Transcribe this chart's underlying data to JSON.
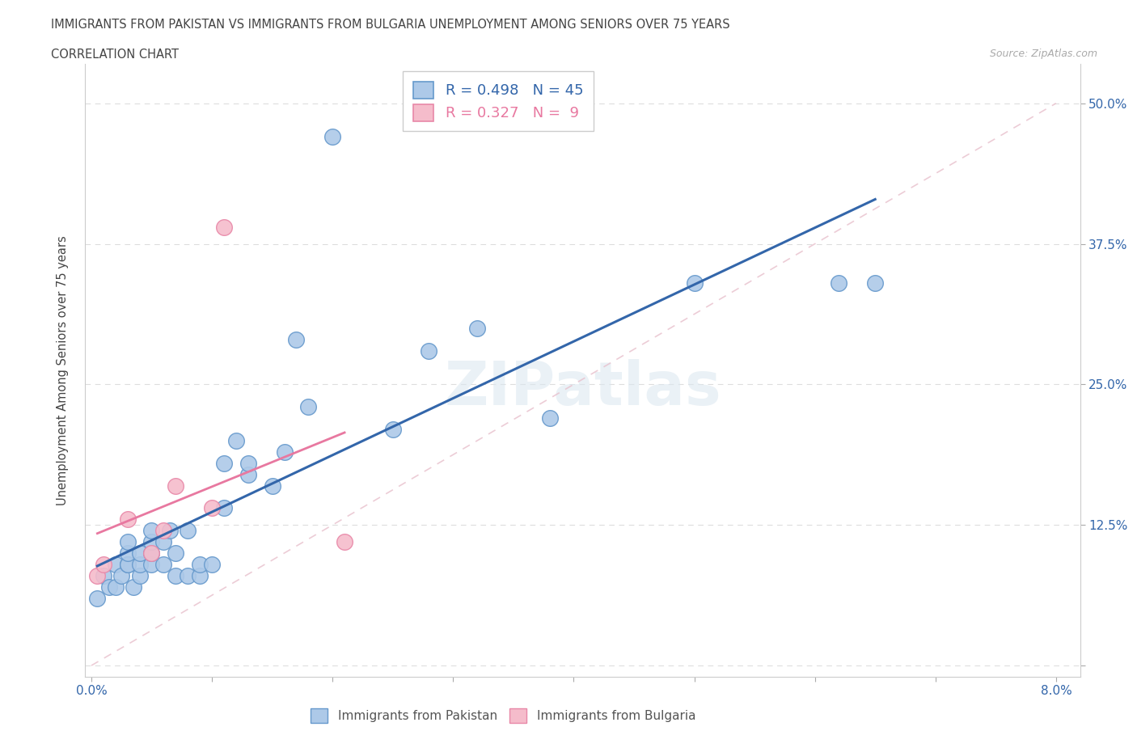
{
  "title_line1": "IMMIGRANTS FROM PAKISTAN VS IMMIGRANTS FROM BULGARIA UNEMPLOYMENT AMONG SENIORS OVER 75 YEARS",
  "title_line2": "CORRELATION CHART",
  "source": "Source: ZipAtlas.com",
  "ylabel": "Unemployment Among Seniors over 75 years",
  "xlim": [
    -0.0005,
    0.082
  ],
  "ylim": [
    -0.01,
    0.535
  ],
  "xtick_pos": [
    0.0,
    0.01,
    0.02,
    0.03,
    0.04,
    0.05,
    0.06,
    0.07,
    0.08
  ],
  "xtick_labels": [
    "0.0%",
    "",
    "",
    "",
    "",
    "",
    "",
    "",
    "8.0%"
  ],
  "ytick_pos": [
    0.0,
    0.125,
    0.25,
    0.375,
    0.5
  ],
  "ytick_labels": [
    "",
    "12.5%",
    "25.0%",
    "37.5%",
    "50.0%"
  ],
  "pakistan_R": 0.498,
  "pakistan_N": 45,
  "bulgaria_R": 0.327,
  "bulgaria_N": 9,
  "pakistan_color": "#adc9e8",
  "pakistan_edge_color": "#6699cc",
  "pakistan_line_color": "#3366aa",
  "bulgaria_color": "#f5bccb",
  "bulgaria_edge_color": "#e888a8",
  "bulgaria_line_color": "#e878a0",
  "ref_line_color": "#ddbbc8",
  "watermark": "ZIPatlas",
  "pakistan_x": [
    0.0005,
    0.001,
    0.0015,
    0.002,
    0.002,
    0.0025,
    0.003,
    0.003,
    0.003,
    0.003,
    0.0035,
    0.004,
    0.004,
    0.004,
    0.005,
    0.005,
    0.005,
    0.005,
    0.006,
    0.006,
    0.0065,
    0.007,
    0.007,
    0.008,
    0.008,
    0.009,
    0.009,
    0.01,
    0.011,
    0.011,
    0.012,
    0.013,
    0.013,
    0.015,
    0.016,
    0.017,
    0.018,
    0.02,
    0.025,
    0.028,
    0.032,
    0.038,
    0.05,
    0.062,
    0.065
  ],
  "pakistan_y": [
    0.06,
    0.08,
    0.07,
    0.07,
    0.09,
    0.08,
    0.09,
    0.09,
    0.1,
    0.11,
    0.07,
    0.08,
    0.09,
    0.1,
    0.09,
    0.1,
    0.11,
    0.12,
    0.09,
    0.11,
    0.12,
    0.08,
    0.1,
    0.08,
    0.12,
    0.08,
    0.09,
    0.09,
    0.14,
    0.18,
    0.2,
    0.17,
    0.18,
    0.16,
    0.19,
    0.29,
    0.23,
    0.47,
    0.21,
    0.28,
    0.3,
    0.22,
    0.34,
    0.34,
    0.34
  ],
  "bulgaria_x": [
    0.0005,
    0.001,
    0.003,
    0.005,
    0.006,
    0.007,
    0.01,
    0.011,
    0.021
  ],
  "bulgaria_y": [
    0.08,
    0.09,
    0.13,
    0.1,
    0.12,
    0.16,
    0.14,
    0.39,
    0.11
  ]
}
